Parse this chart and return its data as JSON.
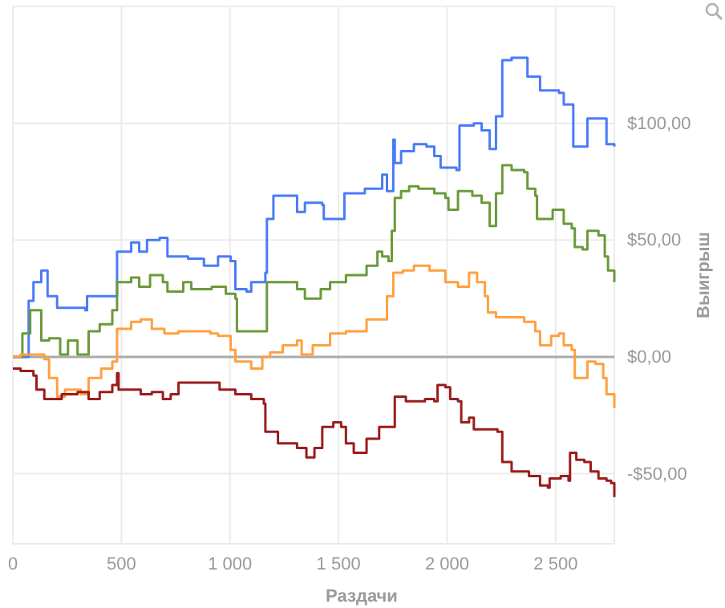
{
  "chart_data": {
    "type": "step",
    "xlabel": "Раздачи",
    "ylabel": "Выигрыш",
    "xlim": [
      0,
      2770
    ],
    "ylim": [
      -80,
      150
    ],
    "xticks": [
      0,
      500,
      {
        "value": 1000,
        "label": "1 000"
      },
      {
        "value": 1500,
        "label": "1 500"
      },
      {
        "value": 2000,
        "label": "2 000"
      },
      {
        "value": 2500,
        "label": "2 500"
      }
    ],
    "yticks": [
      {
        "value": -50,
        "label": "-$50,00"
      },
      {
        "value": 0,
        "label": "$0,00"
      },
      {
        "value": 50,
        "label": "$50,00"
      },
      {
        "value": 100,
        "label": "$100,00"
      },
      {
        "value": 150,
        "label": null
      }
    ],
    "grid": true,
    "line_style": "solid",
    "marker": "none",
    "ref_lines": [
      {
        "axis": "y",
        "value": 0,
        "color": "#aaaaaa"
      }
    ],
    "series": [
      {
        "color": "#4a7bf7",
        "x": [
          0,
          73,
          95,
          131,
          153,
          160,
          204,
          334,
          342,
          443,
          480,
          545,
          582,
          618,
          676,
          712,
          807,
          880,
          945,
          1003,
          1025,
          1076,
          1098,
          1163,
          1170,
          1200,
          1294,
          1309,
          1345,
          1425,
          1432,
          1512,
          1527,
          1621,
          1701,
          1723,
          1752,
          1759,
          1788,
          1847,
          1905,
          1941,
          1970,
          2043,
          2057,
          2123,
          2159,
          2196,
          2225,
          2254,
          2297,
          2355,
          2370,
          2414,
          2428,
          2515,
          2537,
          2559,
          2581,
          2624,
          2646,
          2704,
          2734,
          2770
        ],
        "values": [
          0,
          24,
          32,
          37,
          37,
          26,
          21,
          20,
          26,
          26,
          45,
          49,
          45,
          50,
          51,
          43,
          42,
          39,
          43,
          41,
          29,
          28,
          32,
          36,
          59,
          69,
          69,
          62,
          66,
          65,
          59,
          59,
          70,
          72,
          78,
          71,
          93,
          83,
          88,
          91,
          90,
          86,
          81,
          80,
          99,
          100,
          97,
          89,
          103,
          127,
          128,
          128,
          120,
          120,
          114,
          113,
          108,
          108,
          90,
          90,
          102,
          102,
          91,
          90
        ]
      },
      {
        "color": "#6a9a3a",
        "x": [
          0,
          44,
          80,
          131,
          167,
          218,
          254,
          298,
          349,
          400,
          458,
          480,
          545,
          582,
          632,
          691,
          712,
          785,
          822,
          916,
          981,
          1025,
          1032,
          1163,
          1170,
          1243,
          1309,
          1345,
          1418,
          1461,
          1534,
          1629,
          1679,
          1701,
          1730,
          1745,
          1759,
          1788,
          1825,
          1868,
          1941,
          1992,
          2006,
          2050,
          2116,
          2159,
          2196,
          2225,
          2254,
          2297,
          2355,
          2370,
          2406,
          2414,
          2464,
          2486,
          2515,
          2537,
          2574,
          2588,
          2624,
          2646,
          2697,
          2726,
          2741,
          2770
        ],
        "values": [
          0,
          10,
          20,
          7,
          8,
          1,
          7,
          1,
          11,
          14,
          20,
          32,
          34,
          30,
          35,
          32,
          28,
          32,
          29,
          30,
          27,
          25,
          11,
          11,
          32,
          32,
          29,
          25,
          29,
          32,
          35,
          39,
          45,
          43,
          41,
          54,
          68,
          71,
          73,
          72,
          70,
          68,
          63,
          71,
          69,
          66,
          56,
          70,
          82,
          80,
          79,
          72,
          69,
          59,
          59,
          63,
          63,
          57,
          55,
          47,
          46,
          54,
          52,
          43,
          37,
          32
        ]
      },
      {
        "color": "#ffa040",
        "x": [
          0,
          36,
          145,
          167,
          204,
          240,
          276,
          313,
          349,
          407,
          458,
          480,
          545,
          589,
          640,
          698,
          763,
          909,
          945,
          1003,
          1025,
          1098,
          1149,
          1185,
          1243,
          1309,
          1330,
          1381,
          1461,
          1534,
          1629,
          1701,
          1723,
          1752,
          1796,
          1847,
          1919,
          1992,
          2050,
          2101,
          2138,
          2174,
          2188,
          2225,
          2312,
          2355,
          2406,
          2428,
          2479,
          2515,
          2537,
          2574,
          2588,
          2632,
          2646,
          2683,
          2719,
          2734,
          2770
        ],
        "values": [
          0,
          1,
          -1,
          -9,
          -17,
          -14,
          -14,
          -16,
          -9,
          -5,
          -2,
          12,
          15,
          16,
          12,
          10,
          11,
          10,
          9,
          3,
          -2,
          -5,
          0,
          2,
          5,
          7,
          1,
          5,
          10,
          11,
          16,
          16,
          26,
          36,
          37,
          39,
          37,
          32,
          30,
          36,
          32,
          26,
          19,
          17,
          17,
          15,
          11,
          5,
          9,
          10,
          5,
          3,
          -9,
          -9,
          -2,
          -3,
          -9,
          -16,
          -22
        ]
      },
      {
        "color": "#9b1c1c",
        "x": [
          0,
          36,
          95,
          109,
          145,
          182,
          225,
          298,
          349,
          400,
          458,
          480,
          487,
          589,
          640,
          691,
          727,
          763,
          880,
          952,
          1025,
          1098,
          1156,
          1163,
          1221,
          1309,
          1352,
          1389,
          1425,
          1476,
          1512,
          1534,
          1570,
          1629,
          1679,
          1687,
          1738,
          1759,
          1810,
          1898,
          1941,
          1956,
          1992,
          2014,
          2050,
          2065,
          2101,
          2123,
          2232,
          2254,
          2297,
          2377,
          2428,
          2464,
          2472,
          2523,
          2559,
          2566,
          2595,
          2632,
          2661,
          2697,
          2734,
          2755,
          2770
        ],
        "values": [
          -5,
          -6,
          -8,
          -14,
          -18,
          -18,
          -16,
          -15,
          -18,
          -15,
          -12,
          -7,
          -14,
          -16,
          -15,
          -18,
          -16,
          -11,
          -11,
          -14,
          -16,
          -18,
          -20,
          -32,
          -37,
          -39,
          -43,
          -39,
          -30,
          -28,
          -30,
          -37,
          -41,
          -35,
          -35,
          -30,
          -30,
          -17,
          -19,
          -18,
          -19,
          -12,
          -13,
          -18,
          -19,
          -28,
          -26,
          -31,
          -32,
          -45,
          -49,
          -51,
          -55,
          -56,
          -52,
          -51,
          -53,
          -41,
          -44,
          -45,
          -49,
          -52,
          -53,
          -54,
          -60
        ]
      }
    ]
  }
}
